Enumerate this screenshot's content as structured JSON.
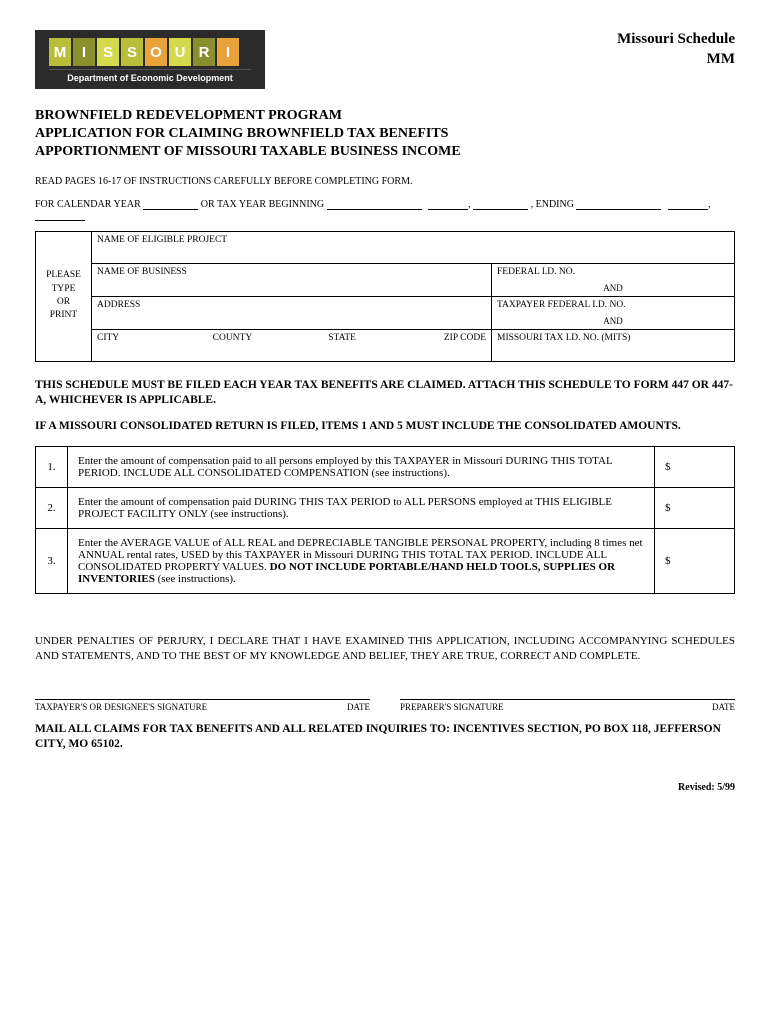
{
  "logo": {
    "letters": [
      "M",
      "I",
      "S",
      "S",
      "O",
      "U",
      "R",
      "I"
    ],
    "letter_bg_colors": [
      "#b8bd3a",
      "#8a8f2e",
      "#d4d84d",
      "#b8bd3a",
      "#e8a23a",
      "#d4d84d",
      "#8a8f2e",
      "#e8a23a"
    ],
    "letter_fg": "#ffffff",
    "box_bg": "#2b2b2b",
    "subtitle": "Department of Economic Development"
  },
  "schedule": {
    "line1": "Missouri Schedule",
    "line2": "MM"
  },
  "title": {
    "line1": "BROWNFIELD REDEVELOPMENT PROGRAM",
    "line2": "APPLICATION FOR CLAIMING BROWNFIELD TAX BENEFITS",
    "line3": "APPORTIONMENT OF MISSOURI TAXABLE BUSINESS INCOME"
  },
  "instructions_note": "READ PAGES 16-17 OF INSTRUCTIONS CAREFULLY BEFORE COMPLETING FORM.",
  "year_line": {
    "prefix": "FOR CALENDAR YEAR",
    "mid": "OR TAX YEAR BEGINNING",
    "ending": ", ENDING"
  },
  "info": {
    "side_label": "PLEASE\nTYPE\nOR\nPRINT",
    "row1": "NAME OF ELIGIBLE PROJECT",
    "row2a": "NAME OF BUSINESS",
    "row2b": "FEDERAL I.D.  NO.",
    "row2b_and": "AND",
    "row3a": "ADDRESS",
    "row3b": "TAXPAYER FEDERAL I.D. NO.",
    "row3b_and": "AND",
    "row4_city": "CITY",
    "row4_county": "COUNTY",
    "row4_state": "STATE",
    "row4_zip": "ZIP CODE",
    "row4b": "MISSOURI TAX I.D. NO. (MITS)"
  },
  "bold_note1": "THIS SCHEDULE MUST BE FILED EACH YEAR TAX BENEFITS ARE CLAIMED.  ATTACH THIS SCHEDULE TO FORM 447 OR 447-A, WHICHEVER IS APPLICABLE.",
  "bold_note2": "IF A MISSOURI CONSOLIDATED RETURN IS FILED, ITEMS 1 AND 5 MUST INCLUDE THE CONSOLIDATED AMOUNTS.",
  "items": [
    {
      "num": "1.",
      "text_pre": "Enter the amount of compensation paid to all persons employed by this TAXPAYER in Missouri DURING THIS TOTAL PERIOD.  INCLUDE ALL CONSOLIDATED COMPENSATION  (see instructions).",
      "amt": "$"
    },
    {
      "num": "2.",
      "text_pre": "Enter the amount of compensation paid DURING THIS TAX PERIOD to ALL PERSONS employed at THIS ELIGIBLE PROJECT FACILITY ONLY  (see instructions).",
      "amt": "$"
    },
    {
      "num": "3.",
      "text_pre": "Enter the AVERAGE VALUE of ALL REAL and DEPRECIABLE TANGIBLE PERSONAL PROPERTY, including 8 times net ANNUAL rental rates, USED by this TAXPAYER in Missouri DURING THIS TOTAL TAX PERIOD.  INCLUDE ALL CONSOLIDATED PROPERTY VALUES.  ",
      "text_bold": "DO NOT INCLUDE PORTABLE/HAND HELD TOOLS, SUPPLIES OR INVENTORIES",
      "text_post": " (see instructions).",
      "amt": "$"
    }
  ],
  "perjury": "UNDER PENALTIES OF PERJURY, I DECLARE THAT I HAVE EXAMINED THIS APPLICATION, INCLUDING ACCOMPANYING SCHEDULES AND STATEMENTS, AND TO THE BEST OF MY KNOWLEDGE AND BELIEF, THEY ARE TRUE, CORRECT AND COMPLETE.",
  "sig": {
    "left_label": "TAXPAYER'S OR DESIGNEE'S SIGNATURE",
    "left_date": "DATE",
    "right_label": "PREPARER'S SIGNATURE",
    "right_date": "DATE"
  },
  "mail": "MAIL ALL CLAIMS FOR TAX BENEFITS AND ALL RELATED INQUIRIES TO:  INCENTIVES SECTION, PO BOX 118, JEFFERSON CITY, MO 65102.",
  "revised": "Revised: 5/99"
}
